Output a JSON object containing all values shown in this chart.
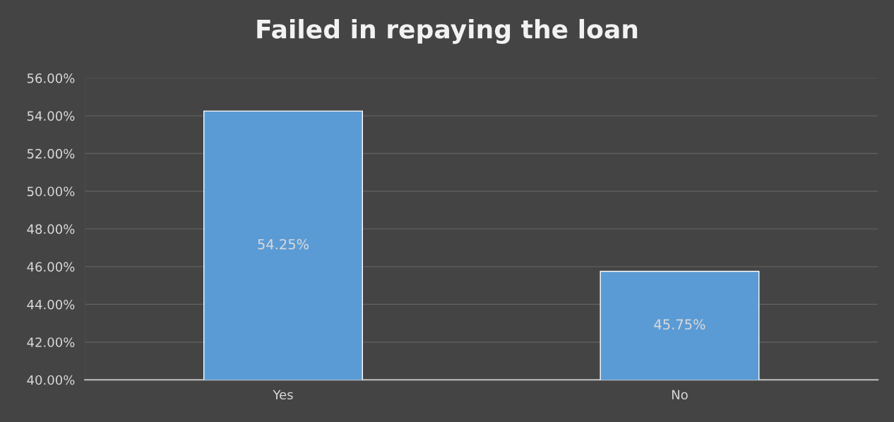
{
  "chart_data": {
    "type": "bar",
    "title": "Failed in repaying the loan",
    "categories": [
      "Yes",
      "No"
    ],
    "values": [
      54.25,
      45.75
    ],
    "value_labels": [
      "54.25%",
      "45.75%"
    ],
    "color": "#5b9bd5",
    "ylim": [
      40,
      56
    ],
    "yticks": [
      {
        "value": 40,
        "label": "40.00%"
      },
      {
        "value": 42,
        "label": "42.00%"
      },
      {
        "value": 44,
        "label": "44.00%"
      },
      {
        "value": 46,
        "label": "46.00%"
      },
      {
        "value": 48,
        "label": "48.00%"
      },
      {
        "value": 50,
        "label": "50.00%"
      },
      {
        "value": 52,
        "label": "52.00%"
      },
      {
        "value": 54,
        "label": "54.00%"
      },
      {
        "value": 56,
        "label": "56.00%"
      }
    ],
    "grid": "y"
  }
}
